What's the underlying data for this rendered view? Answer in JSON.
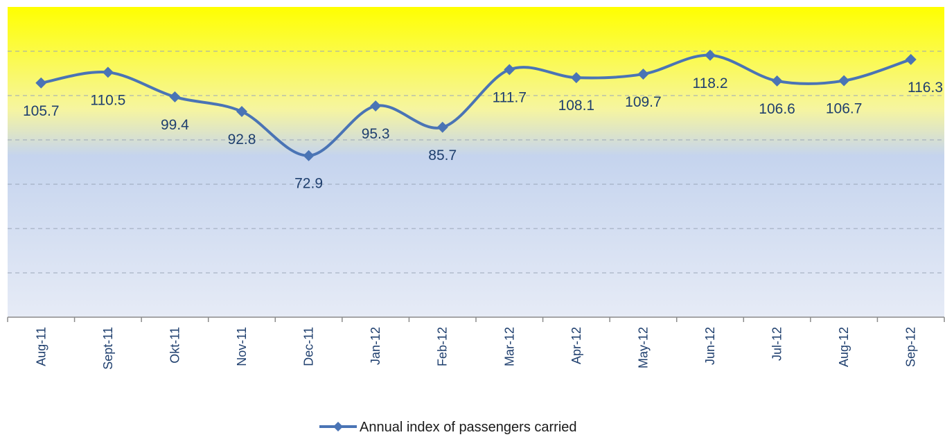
{
  "chart_data": {
    "type": "line",
    "title": "",
    "xlabel": "",
    "ylabel": "",
    "categories": [
      "Aug-11",
      "Sept-11",
      "Okt-11",
      "Nov-11",
      "Dec-11",
      "Jan-12",
      "Feb-12",
      "Mar-12",
      "Apr-12",
      "May-12",
      "Jun-12",
      "Jul-12",
      "Aug-12",
      "Sep-12"
    ],
    "series": [
      {
        "name": "Annual index of passengers carried",
        "values": [
          105.7,
          110.5,
          99.4,
          92.8,
          72.9,
          95.3,
          85.7,
          111.7,
          108.1,
          109.7,
          118.2,
          106.6,
          106.7,
          116.3
        ],
        "labels": [
          "105.7",
          "110.5",
          "99.4",
          "92.8",
          "72.9",
          "95.3",
          "85.7",
          "111.7",
          "108.1",
          "109.7",
          "118.2",
          "106.6",
          "106.7",
          "116.3"
        ],
        "color": "#4a74b5",
        "marker": "diamond",
        "smooth": true
      }
    ],
    "ylim": [
      0,
      140
    ],
    "y_axis_visible": false,
    "grid": "horizontal-dashed",
    "legend_position": "bottom",
    "background": {
      "top": "#ffff00",
      "middle": "#c5d4ee",
      "bottom": "#e6ebf6"
    }
  }
}
